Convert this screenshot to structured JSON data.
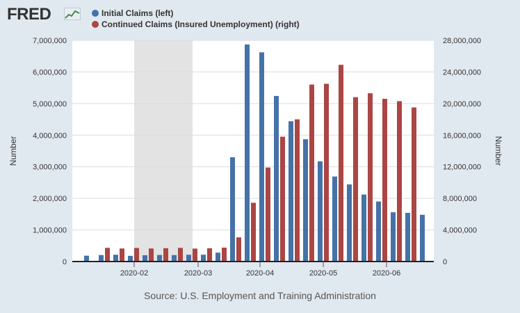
{
  "logo": {
    "text": "FRED"
  },
  "legend": [
    {
      "label": "Initial Claims (left)",
      "color": "#4572a7"
    },
    {
      "label": "Continued Claims (Insured Unemployment) (right)",
      "color": "#aa4643"
    }
  ],
  "source": "Source: U.S. Employment and Training Administration",
  "chart_data": {
    "type": "bar",
    "title": "",
    "left_axis": {
      "label": "Number",
      "range": [
        0,
        7000000
      ],
      "ticks": [
        "0",
        "1,000,000",
        "2,000,000",
        "3,000,000",
        "4,000,000",
        "5,000,000",
        "6,000,000",
        "7,000,000"
      ]
    },
    "right_axis": {
      "label": "Number",
      "range": [
        0,
        28000000
      ],
      "ticks": [
        "0",
        "4,000,000",
        "8,000,000",
        "12,000,000",
        "16,000,000",
        "20,000,000",
        "24,000,000",
        "28,000,000"
      ]
    },
    "x_ticks": [
      "2020-02",
      "2020-03",
      "2020-04",
      "2020-05",
      "2020-06"
    ],
    "recession_shading": true,
    "grid": true,
    "legend_position": "top-left",
    "series": [
      {
        "name": "Initial Claims (left)",
        "axis": "left",
        "color": "#4572a7",
        "values": [
          185000,
          205000,
          215000,
          180000,
          200000,
          208000,
          205000,
          215000,
          216000,
          281000,
          3300000,
          6870000,
          6620000,
          5240000,
          4440000,
          3870000,
          3170000,
          2690000,
          2440000,
          2120000,
          1900000,
          1560000,
          1540000,
          1480000
        ]
      },
      {
        "name": "Continued Claims (Insured Unemployment) (right)",
        "axis": "right",
        "color": "#aa4643",
        "values": [
          null,
          1730000,
          1650000,
          1720000,
          1650000,
          1690000,
          1730000,
          1640000,
          1680000,
          1760000,
          3060000,
          7440000,
          11900000,
          15800000,
          18000000,
          22400000,
          22500000,
          24900000,
          20800000,
          21300000,
          20600000,
          20300000,
          19500000,
          null
        ]
      }
    ]
  }
}
